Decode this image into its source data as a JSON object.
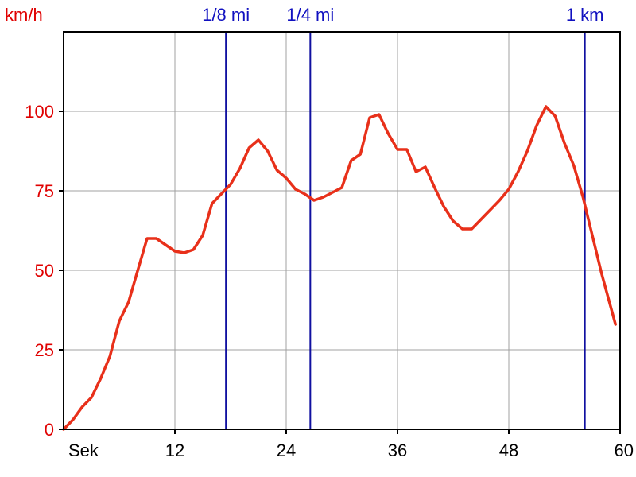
{
  "chart_data": {
    "type": "line",
    "ylabel": "km/h",
    "xlabel": "Sek",
    "xlim": [
      0,
      60
    ],
    "ylim": [
      0,
      125
    ],
    "x_ticks": [
      12,
      24,
      36,
      48,
      60
    ],
    "y_ticks": [
      0,
      25,
      50,
      75,
      100
    ],
    "grid": true,
    "series": [
      {
        "color": "#e8301a",
        "points": [
          [
            0,
            0
          ],
          [
            1,
            3
          ],
          [
            2,
            7
          ],
          [
            3,
            10
          ],
          [
            4,
            16
          ],
          [
            5,
            23
          ],
          [
            6,
            34
          ],
          [
            7,
            40
          ],
          [
            8,
            50
          ],
          [
            9,
            60
          ],
          [
            10,
            60
          ],
          [
            11,
            58
          ],
          [
            12,
            56
          ],
          [
            13,
            55.5
          ],
          [
            14,
            56.5
          ],
          [
            15,
            61
          ],
          [
            16,
            71
          ],
          [
            17,
            74
          ],
          [
            18,
            77
          ],
          [
            19,
            82
          ],
          [
            20,
            88.5
          ],
          [
            21,
            91
          ],
          [
            22,
            87.5
          ],
          [
            23,
            81.5
          ],
          [
            24,
            79
          ],
          [
            25,
            75.5
          ],
          [
            26,
            74
          ],
          [
            27,
            72
          ],
          [
            28,
            73
          ],
          [
            29,
            74.5
          ],
          [
            30,
            76
          ],
          [
            31,
            84.5
          ],
          [
            32,
            86.5
          ],
          [
            33,
            98
          ],
          [
            34,
            99
          ],
          [
            35,
            93
          ],
          [
            36,
            88
          ],
          [
            37,
            88
          ],
          [
            38,
            81
          ],
          [
            39,
            82.5
          ],
          [
            40,
            76
          ],
          [
            41,
            70
          ],
          [
            42,
            65.5
          ],
          [
            43,
            63
          ],
          [
            44,
            63
          ],
          [
            45,
            66
          ],
          [
            46,
            69
          ],
          [
            47,
            72
          ],
          [
            48,
            75.5
          ],
          [
            49,
            81
          ],
          [
            50,
            87.5
          ],
          [
            51,
            95.5
          ],
          [
            52,
            101.5
          ],
          [
            53,
            98.5
          ],
          [
            54,
            90
          ],
          [
            55,
            83
          ],
          [
            56,
            73
          ],
          [
            57,
            61
          ],
          [
            58,
            49
          ],
          [
            59.5,
            33
          ]
        ]
      }
    ],
    "markers": [
      {
        "label": "1/8 mi",
        "x": 17.5,
        "color": "#1010a0"
      },
      {
        "label": "1/4 mi",
        "x": 26.6,
        "color": "#1010a0"
      },
      {
        "label": "1 km",
        "x": 56.2,
        "color": "#1010a0"
      }
    ]
  }
}
